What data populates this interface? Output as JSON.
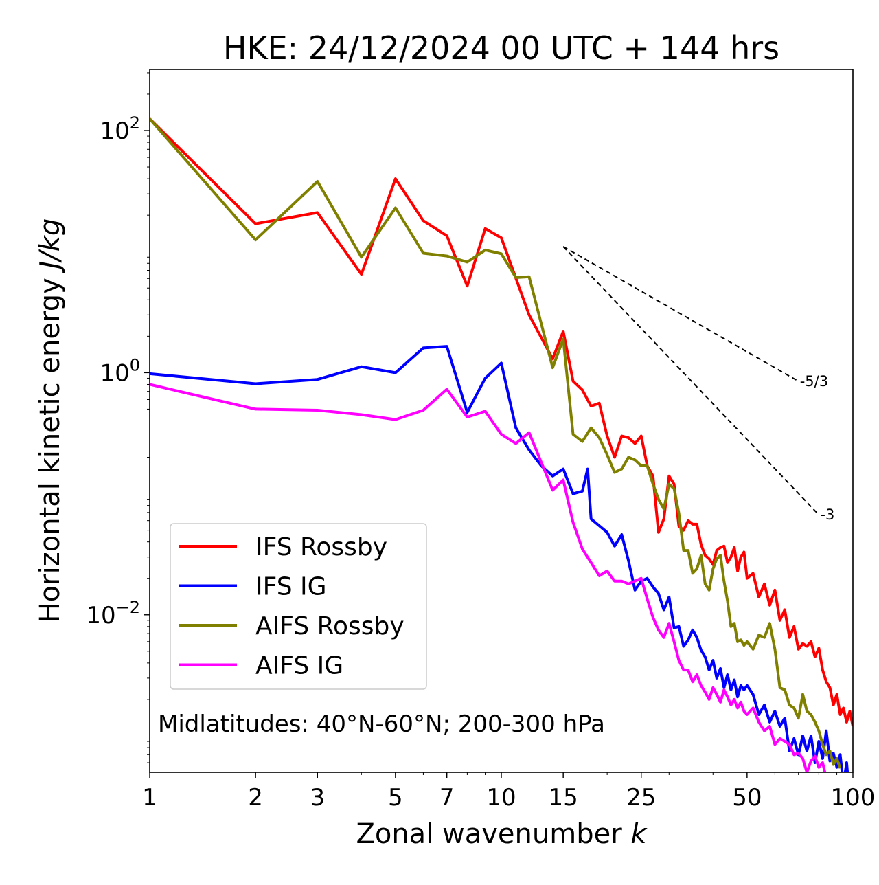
{
  "chart_data": {
    "type": "line",
    "title": "HKE: 24/12/2024 00 UTC + 144 hrs",
    "xlabel": "Zonal wavenumber",
    "xlabel_var": "k",
    "ylabel": "Horizontal kinetic energy",
    "ylabel_unit": "J/kg",
    "xscale": "log",
    "yscale": "log",
    "xlim": [
      1,
      100
    ],
    "ylim": [
      0.0005,
      320
    ],
    "xticks": [
      1,
      2,
      3,
      5,
      7,
      10,
      15,
      25,
      50,
      100
    ],
    "xtick_labels": [
      "1",
      "2",
      "3",
      "5",
      "7",
      "10",
      "15",
      "25",
      "50",
      "100"
    ],
    "yticks": [
      {
        "value": 100,
        "base": "10",
        "exp": "2"
      },
      {
        "value": 1,
        "base": "10",
        "exp": "0"
      },
      {
        "value": 0.01,
        "base": "10",
        "exp": "−2"
      }
    ],
    "grid": false,
    "legend_position": "lower-left",
    "annotation": "Midlatitudes: 40°N-60°N; 200-300 hPa",
    "series": [
      {
        "name": "IFS Rossby",
        "color": "#ff0000",
        "points": [
          [
            1,
            125
          ],
          [
            2,
            17
          ],
          [
            3,
            21
          ],
          [
            4,
            6.5
          ],
          [
            5,
            40
          ],
          [
            6,
            18
          ],
          [
            7,
            13.5
          ],
          [
            8,
            5.2
          ],
          [
            9,
            15.5
          ],
          [
            10,
            13
          ],
          [
            12,
            3
          ],
          [
            14,
            1.3
          ],
          [
            15,
            2.2
          ],
          [
            16,
            0.85
          ],
          [
            17,
            0.72
          ],
          [
            18,
            0.53
          ],
          [
            19,
            0.56
          ],
          [
            20,
            0.3
          ],
          [
            21,
            0.2
          ],
          [
            22,
            0.3
          ],
          [
            23,
            0.29
          ],
          [
            24,
            0.26
          ],
          [
            25,
            0.3
          ],
          [
            26,
            0.17
          ],
          [
            27,
            0.14
          ],
          [
            28,
            0.048
          ],
          [
            29,
            0.062
          ],
          [
            30,
            0.14
          ],
          [
            31,
            0.12
          ],
          [
            32,
            0.054
          ],
          [
            33,
            0.05
          ],
          [
            34,
            0.06
          ],
          [
            35,
            0.056
          ],
          [
            36,
            0.056
          ],
          [
            37,
            0.038
          ],
          [
            38,
            0.031
          ],
          [
            39,
            0.029
          ],
          [
            40,
            0.026
          ],
          [
            41,
            0.034
          ],
          [
            42,
            0.036
          ],
          [
            43,
            0.037
          ],
          [
            44,
            0.027
          ],
          [
            45,
            0.03
          ],
          [
            46,
            0.036
          ],
          [
            47,
            0.023
          ],
          [
            48,
            0.03
          ],
          [
            49,
            0.033
          ],
          [
            50,
            0.02
          ],
          [
            52,
            0.022
          ],
          [
            54,
            0.014
          ],
          [
            56,
            0.018
          ],
          [
            58,
            0.012
          ],
          [
            60,
            0.016
          ],
          [
            62,
            0.009
          ],
          [
            64,
            0.011
          ],
          [
            66,
            0.0065
          ],
          [
            68,
            0.008
          ],
          [
            70,
            0.0052
          ],
          [
            72,
            0.0058
          ],
          [
            74,
            0.0055
          ],
          [
            76,
            0.006
          ],
          [
            78,
            0.0045
          ],
          [
            80,
            0.0053
          ],
          [
            82,
            0.0035
          ],
          [
            84,
            0.0028
          ],
          [
            86,
            0.0025
          ],
          [
            88,
            0.0018
          ],
          [
            90,
            0.0022
          ],
          [
            92,
            0.0015
          ],
          [
            94,
            0.0017
          ],
          [
            96,
            0.0013
          ],
          [
            98,
            0.0016
          ],
          [
            100,
            0.0012
          ]
        ]
      },
      {
        "name": "IFS IG",
        "color": "#0000ff",
        "points": [
          [
            1,
            0.98
          ],
          [
            2,
            0.81
          ],
          [
            3,
            0.88
          ],
          [
            4,
            1.12
          ],
          [
            5,
            1.0
          ],
          [
            6,
            1.6
          ],
          [
            7,
            1.65
          ],
          [
            8,
            0.47
          ],
          [
            9,
            0.9
          ],
          [
            10,
            1.2
          ],
          [
            11,
            0.35
          ],
          [
            12,
            0.23
          ],
          [
            13,
            0.17
          ],
          [
            14,
            0.14
          ],
          [
            15,
            0.16
          ],
          [
            16,
            0.1
          ],
          [
            17,
            0.105
          ],
          [
            17.6,
            0.16
          ],
          [
            18,
            0.062
          ],
          [
            20,
            0.048
          ],
          [
            21,
            0.037
          ],
          [
            22,
            0.046
          ],
          [
            23,
            0.028
          ],
          [
            24,
            0.016
          ],
          [
            25,
            0.019
          ],
          [
            26,
            0.02
          ],
          [
            27,
            0.017
          ],
          [
            28,
            0.015
          ],
          [
            29,
            0.011
          ],
          [
            30,
            0.014
          ],
          [
            31,
            0.0078
          ],
          [
            32,
            0.008
          ],
          [
            33,
            0.0055
          ],
          [
            34,
            0.0062
          ],
          [
            35,
            0.0075
          ],
          [
            36,
            0.0065
          ],
          [
            37,
            0.0051
          ],
          [
            38,
            0.0045
          ],
          [
            39,
            0.0035
          ],
          [
            40,
            0.0042
          ],
          [
            41,
            0.003
          ],
          [
            42,
            0.0036
          ],
          [
            43,
            0.0025
          ],
          [
            44,
            0.0032
          ],
          [
            45,
            0.0024
          ],
          [
            46,
            0.0029
          ],
          [
            47,
            0.0021
          ],
          [
            48,
            0.0026
          ],
          [
            49,
            0.0024
          ],
          [
            50,
            0.0026
          ],
          [
            52,
            0.0022
          ],
          [
            54,
            0.0015
          ],
          [
            56,
            0.0018
          ],
          [
            58,
            0.0013
          ],
          [
            60,
            0.0016
          ],
          [
            62,
            0.0012
          ],
          [
            64,
            0.0014
          ],
          [
            66,
            0.00075
          ],
          [
            68,
            0.00095
          ],
          [
            70,
            0.0007
          ],
          [
            72,
            0.001
          ],
          [
            74,
            0.00075
          ],
          [
            76,
            0.001
          ],
          [
            78,
            0.0006
          ],
          [
            80,
            0.0009
          ],
          [
            82,
            0.00065
          ],
          [
            84,
            0.0011
          ],
          [
            86,
            0.00062
          ],
          [
            88,
            0.00072
          ],
          [
            90,
            0.00055
          ],
          [
            92,
            0.0007
          ],
          [
            94,
            0.0004
          ],
          [
            96,
            0.0006
          ],
          [
            98,
            0.0003
          ],
          [
            100,
            0.0005
          ]
        ]
      },
      {
        "name": "AIFS Rossby",
        "color": "#808000",
        "points": [
          [
            1,
            125
          ],
          [
            2,
            12.5
          ],
          [
            3,
            38
          ],
          [
            4,
            9
          ],
          [
            5,
            23
          ],
          [
            6,
            9.7
          ],
          [
            7,
            9.2
          ],
          [
            8,
            8.2
          ],
          [
            9,
            10.3
          ],
          [
            10,
            9.6
          ],
          [
            11,
            6.1
          ],
          [
            12,
            6.2
          ],
          [
            14,
            1.1
          ],
          [
            15,
            1.9
          ],
          [
            16,
            0.31
          ],
          [
            17,
            0.27
          ],
          [
            18,
            0.35
          ],
          [
            19,
            0.29
          ],
          [
            20,
            0.21
          ],
          [
            21,
            0.15
          ],
          [
            22,
            0.16
          ],
          [
            23,
            0.2
          ],
          [
            24,
            0.19
          ],
          [
            25,
            0.17
          ],
          [
            26,
            0.17
          ],
          [
            27,
            0.12
          ],
          [
            28,
            0.09
          ],
          [
            29,
            0.075
          ],
          [
            30,
            0.12
          ],
          [
            31,
            0.11
          ],
          [
            32,
            0.069
          ],
          [
            33,
            0.034
          ],
          [
            34,
            0.034
          ],
          [
            35,
            0.022
          ],
          [
            36,
            0.024
          ],
          [
            37,
            0.031
          ],
          [
            38,
            0.018
          ],
          [
            39,
            0.016
          ],
          [
            40,
            0.024
          ],
          [
            41,
            0.029
          ],
          [
            42,
            0.031
          ],
          [
            43,
            0.019
          ],
          [
            44,
            0.013
          ],
          [
            45,
            0.008
          ],
          [
            46,
            0.0085
          ],
          [
            47,
            0.006
          ],
          [
            48,
            0.0062
          ],
          [
            49,
            0.0056
          ],
          [
            50,
            0.006
          ],
          [
            52,
            0.0052
          ],
          [
            54,
            0.0068
          ],
          [
            56,
            0.0065
          ],
          [
            58,
            0.0085
          ],
          [
            60,
            0.0052
          ],
          [
            62,
            0.0025
          ],
          [
            64,
            0.0024
          ],
          [
            66,
            0.0018
          ],
          [
            68,
            0.0017
          ],
          [
            70,
            0.0014
          ],
          [
            72,
            0.0022
          ],
          [
            74,
            0.0016
          ],
          [
            76,
            0.0015
          ],
          [
            78,
            0.0013
          ],
          [
            80,
            0.0011
          ],
          [
            82,
            0.00085
          ],
          [
            84,
            0.0007
          ],
          [
            86,
            0.00075
          ],
          [
            88,
            0.00058
          ],
          [
            90,
            0.00065
          ],
          [
            92,
            0.00054
          ]
        ]
      },
      {
        "name": "AIFS IG",
        "color": "#ff00ff",
        "points": [
          [
            1,
            0.8
          ],
          [
            2,
            0.5
          ],
          [
            3,
            0.49
          ],
          [
            4,
            0.45
          ],
          [
            5,
            0.41
          ],
          [
            6,
            0.49
          ],
          [
            7,
            0.73
          ],
          [
            8,
            0.43
          ],
          [
            9,
            0.48
          ],
          [
            10,
            0.31
          ],
          [
            11,
            0.26
          ],
          [
            12,
            0.32
          ],
          [
            14,
            0.107
          ],
          [
            15,
            0.13
          ],
          [
            16,
            0.058
          ],
          [
            17,
            0.035
          ],
          [
            18,
            0.027
          ],
          [
            19,
            0.021
          ],
          [
            20,
            0.023
          ],
          [
            21,
            0.019
          ],
          [
            22,
            0.019
          ],
          [
            23,
            0.018
          ],
          [
            24,
            0.019
          ],
          [
            25,
            0.02
          ],
          [
            26,
            0.0135
          ],
          [
            27,
            0.0095
          ],
          [
            28,
            0.0075
          ],
          [
            29,
            0.0065
          ],
          [
            30,
            0.0085
          ],
          [
            31,
            0.006
          ],
          [
            32,
            0.0042
          ],
          [
            33,
            0.0035
          ],
          [
            34,
            0.0035
          ],
          [
            35,
            0.0028
          ],
          [
            36,
            0.0032
          ],
          [
            37,
            0.0026
          ],
          [
            38,
            0.0023
          ],
          [
            39,
            0.002
          ],
          [
            40,
            0.0025
          ],
          [
            41,
            0.0022
          ],
          [
            42,
            0.0019
          ],
          [
            43,
            0.0024
          ],
          [
            44,
            0.0021
          ],
          [
            45,
            0.0018
          ],
          [
            46,
            0.002
          ],
          [
            47,
            0.0017
          ],
          [
            48,
            0.0019
          ],
          [
            49,
            0.0016
          ],
          [
            50,
            0.0015
          ],
          [
            52,
            0.0017
          ],
          [
            54,
            0.0013
          ],
          [
            56,
            0.0011
          ],
          [
            58,
            0.0012
          ],
          [
            60,
            0.00085
          ],
          [
            62,
            0.00095
          ],
          [
            64,
            0.0009
          ],
          [
            66,
            0.00085
          ],
          [
            68,
            0.0007
          ],
          [
            70,
            0.00072
          ],
          [
            72,
            0.00065
          ],
          [
            74,
            0.0005
          ],
          [
            76,
            0.00062
          ],
          [
            78,
            0.00068
          ],
          [
            80,
            0.00055
          ],
          [
            82,
            0.0006
          ],
          [
            84,
            0.00045
          ],
          [
            86,
            0.0004
          ],
          [
            88,
            0.00035
          ]
        ]
      }
    ],
    "reference_lines": [
      {
        "label": "-5/3",
        "slope": -1.6667,
        "start": [
          15,
          11
        ],
        "end": [
          70,
          0.85
        ]
      },
      {
        "label": "-3",
        "slope": -3,
        "start": [
          15,
          11
        ],
        "end": [
          80,
          0.067
        ]
      }
    ]
  }
}
